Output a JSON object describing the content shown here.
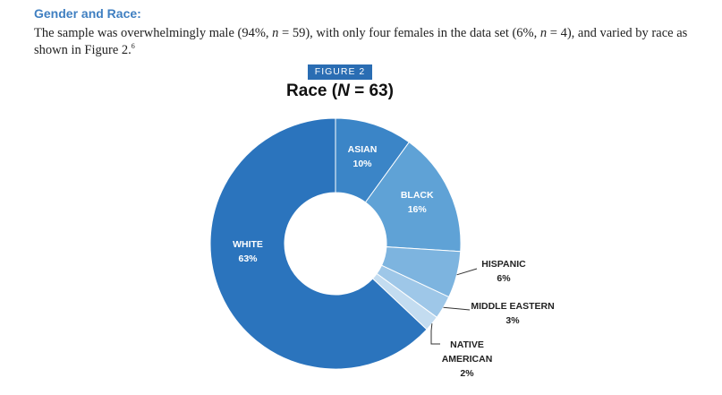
{
  "section": {
    "heading": "Gender and Race:",
    "paragraph": {
      "part1": "The sample was overwhelmingly male (94%, ",
      "n1_label": "n",
      "part2": " = 59), with only four females in the data set (6%, ",
      "n2_label": "n",
      "part3": " = 4), and varied by race as shown in Figure 2.",
      "footnote": "6"
    }
  },
  "figure": {
    "badge": "FIGURE 2",
    "title_prefix": "Race (",
    "title_n": "N",
    "title_suffix": " = 63)"
  },
  "chart_data": {
    "type": "pie",
    "donut": true,
    "slices": [
      {
        "label": "ASIAN",
        "value": 10,
        "pct_label": "10%",
        "color": "#3b85c7",
        "label_color": "#ffffff"
      },
      {
        "label": "BLACK",
        "value": 16,
        "pct_label": "16%",
        "color": "#5fa2d6",
        "label_color": "#ffffff"
      },
      {
        "label": "HISPANIC",
        "value": 6,
        "pct_label": "6%",
        "color": "#7db4df",
        "label_color": "#222222"
      },
      {
        "label": "MIDDLE EASTERN",
        "value": 3,
        "pct_label": "3%",
        "color": "#9ec7e8",
        "label_color": "#222222"
      },
      {
        "label": "NATIVE AMERICAN",
        "label_lines": [
          "NATIVE",
          "AMERICAN"
        ],
        "value": 2,
        "pct_label": "2%",
        "color": "#c3dcf0",
        "label_color": "#222222"
      },
      {
        "label": "WHITE",
        "value": 63,
        "pct_label": "63%",
        "color": "#2b74bd",
        "label_color": "#ffffff"
      }
    ]
  }
}
